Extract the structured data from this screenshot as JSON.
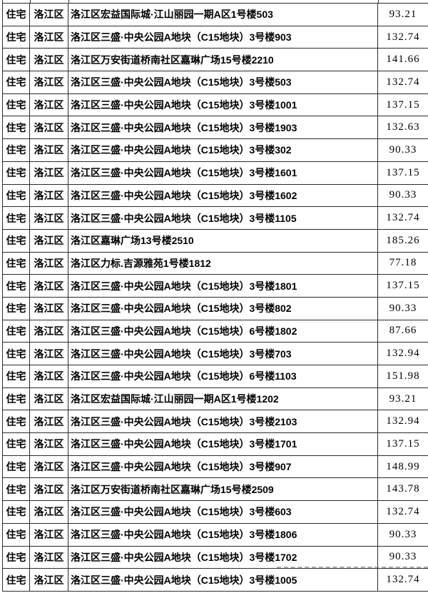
{
  "colors": {
    "background": "#ffffff",
    "grid_border": "#2b2b2b",
    "text": "#000000",
    "dashed_line": "#8f8f8f"
  },
  "table": {
    "rows": [
      {
        "type": "住宅",
        "district": "洛江区",
        "address": "洛江区宏益国际城·江山丽园一期A区1号楼503",
        "area": "93.21"
      },
      {
        "type": "住宅",
        "district": "洛江区",
        "address": "洛江区三盛·中央公园A地块（C15地块）3号楼903",
        "area": "132.74"
      },
      {
        "type": "住宅",
        "district": "洛江区",
        "address": "洛江区万安街道桥南社区嘉琳广场15号楼2210",
        "area": "141.66"
      },
      {
        "type": "住宅",
        "district": "洛江区",
        "address": "洛江区三盛·中央公园A地块（C15地块）3号楼503",
        "area": "132.74"
      },
      {
        "type": "住宅",
        "district": "洛江区",
        "address": "洛江区三盛·中央公园A地块（C15地块）3号楼1001",
        "area": "137.15"
      },
      {
        "type": "住宅",
        "district": "洛江区",
        "address": "洛江区三盛·中央公园A地块（C15地块）3号楼1903",
        "area": "132.63"
      },
      {
        "type": "住宅",
        "district": "洛江区",
        "address": "洛江区三盛·中央公园A地块（C15地块）3号楼302",
        "area": "90.33"
      },
      {
        "type": "住宅",
        "district": "洛江区",
        "address": "洛江区三盛·中央公园A地块（C15地块）3号楼1601",
        "area": "137.15"
      },
      {
        "type": "住宅",
        "district": "洛江区",
        "address": "洛江区三盛·中央公园A地块（C15地块）3号楼1602",
        "area": "90.33"
      },
      {
        "type": "住宅",
        "district": "洛江区",
        "address": "洛江区三盛·中央公园A地块（C15地块）3号楼1105",
        "area": "132.74"
      },
      {
        "type": "住宅",
        "district": "洛江区",
        "address": "洛江区嘉琳广场13号楼2510",
        "area": "185.26"
      },
      {
        "type": "住宅",
        "district": "洛江区",
        "address": "洛江区力标.吉源雅苑1号楼1812",
        "area": "77.18"
      },
      {
        "type": "住宅",
        "district": "洛江区",
        "address": "洛江区三盛·中央公园A地块（C15地块）3号楼1801",
        "area": "137.15"
      },
      {
        "type": "住宅",
        "district": "洛江区",
        "address": "洛江区三盛·中央公园A地块（C15地块）3号楼802",
        "area": "90.33"
      },
      {
        "type": "住宅",
        "district": "洛江区",
        "address": "洛江区三盛·中央公园A地块（C15地块）6号楼1802",
        "area": "87.66"
      },
      {
        "type": "住宅",
        "district": "洛江区",
        "address": "洛江区三盛·中央公园A地块（C15地块）3号楼703",
        "area": "132.94"
      },
      {
        "type": "住宅",
        "district": "洛江区",
        "address": "洛江区三盛·中央公园A地块（C15地块）6号楼1103",
        "area": "151.98"
      },
      {
        "type": "住宅",
        "district": "洛江区",
        "address": "洛江区宏益国际城·江山丽园一期A区1号楼1202",
        "area": "93.21"
      },
      {
        "type": "住宅",
        "district": "洛江区",
        "address": "洛江区三盛·中央公园A地块（C15地块）3号楼2103",
        "area": "132.94"
      },
      {
        "type": "住宅",
        "district": "洛江区",
        "address": "洛江区三盛·中央公园A地块（C15地块）3号楼1701",
        "area": "137.15"
      },
      {
        "type": "住宅",
        "district": "洛江区",
        "address": "洛江区三盛·中央公园A地块（C15地块）3号楼907",
        "area": "148.99"
      },
      {
        "type": "住宅",
        "district": "洛江区",
        "address": "洛江区万安街道桥南社区嘉琳广场15号楼2509",
        "area": "143.78"
      },
      {
        "type": "住宅",
        "district": "洛江区",
        "address": "洛江区三盛·中央公园A地块（C15地块）3号楼603",
        "area": "132.74"
      },
      {
        "type": "住宅",
        "district": "洛江区",
        "address": "洛江区三盛·中央公园A地块（C15地块）3号楼1806",
        "area": "90.33"
      },
      {
        "type": "住宅",
        "district": "洛江区",
        "address": "洛江区三盛·中央公园A地块（C15地块）3号楼1702",
        "area": "90.33"
      },
      {
        "type": "住宅",
        "district": "洛江区",
        "address": "洛江区三盛·中央公园A地块（C15地块）3号楼1005",
        "area": "132.74"
      }
    ]
  }
}
